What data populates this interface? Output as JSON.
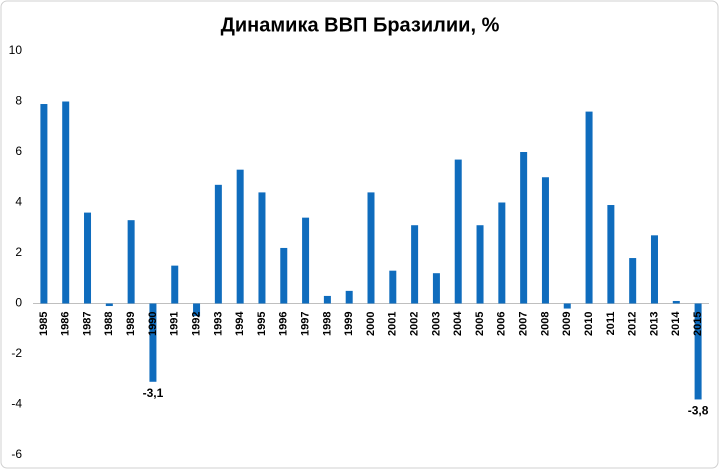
{
  "chart_data": {
    "type": "bar",
    "title": "Динамика ВВП Бразилии, %",
    "categories": [
      "1985",
      "1986",
      "1987",
      "1988",
      "1989",
      "1990",
      "1991",
      "1992",
      "1993",
      "1994",
      "1995",
      "1996",
      "1997",
      "1998",
      "1999",
      "2000",
      "2001",
      "2002",
      "2003",
      "2004",
      "2005",
      "2006",
      "2007",
      "2008",
      "2009",
      "2010",
      "2011",
      "2012",
      "2013",
      "2014",
      "2015"
    ],
    "values": [
      7.9,
      8.0,
      3.6,
      -0.1,
      3.3,
      -3.1,
      1.5,
      -0.5,
      4.7,
      5.3,
      4.4,
      2.2,
      3.4,
      0.3,
      0.5,
      4.4,
      1.3,
      3.1,
      1.2,
      5.7,
      3.1,
      4.0,
      6.0,
      5.0,
      -0.2,
      7.6,
      3.9,
      1.8,
      2.7,
      0.1,
      -3.8
    ],
    "value_labels": [
      null,
      null,
      null,
      null,
      null,
      "-3,1",
      null,
      null,
      null,
      null,
      null,
      null,
      null,
      null,
      null,
      null,
      null,
      null,
      null,
      null,
      null,
      null,
      null,
      null,
      null,
      null,
      null,
      null,
      null,
      null,
      "-3,8"
    ],
    "color": "#0f6cbd",
    "ylim": [
      -6,
      10
    ],
    "yticks": [
      -6,
      -4,
      -2,
      0,
      2,
      4,
      6,
      8,
      10
    ],
    "grid": false
  }
}
